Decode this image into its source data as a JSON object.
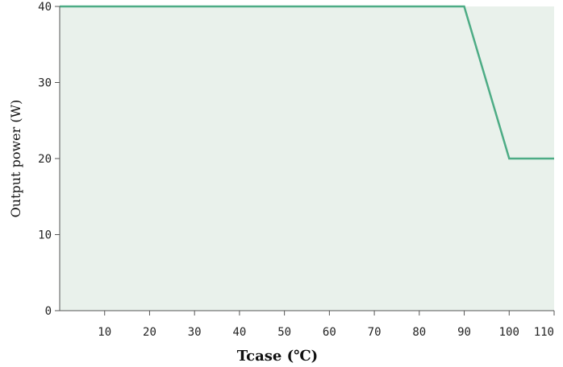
{
  "chart_data": {
    "type": "line",
    "title": "",
    "xlabel": "Tcase (℃)",
    "ylabel": "Output power (W)",
    "xlim": [
      0,
      110
    ],
    "ylim": [
      0,
      40
    ],
    "x_ticks": [
      10,
      20,
      30,
      40,
      50,
      60,
      70,
      80,
      90,
      100,
      110
    ],
    "y_ticks": [
      0,
      10,
      20,
      30,
      40
    ],
    "grid": false,
    "series": [
      {
        "x": [
          0,
          90,
          100,
          110
        ],
        "y": [
          40,
          40,
          20,
          20
        ],
        "color": "#4dac85"
      }
    ],
    "colors": {
      "plot_background": "#e9f1eb",
      "axis": "#555555"
    }
  }
}
